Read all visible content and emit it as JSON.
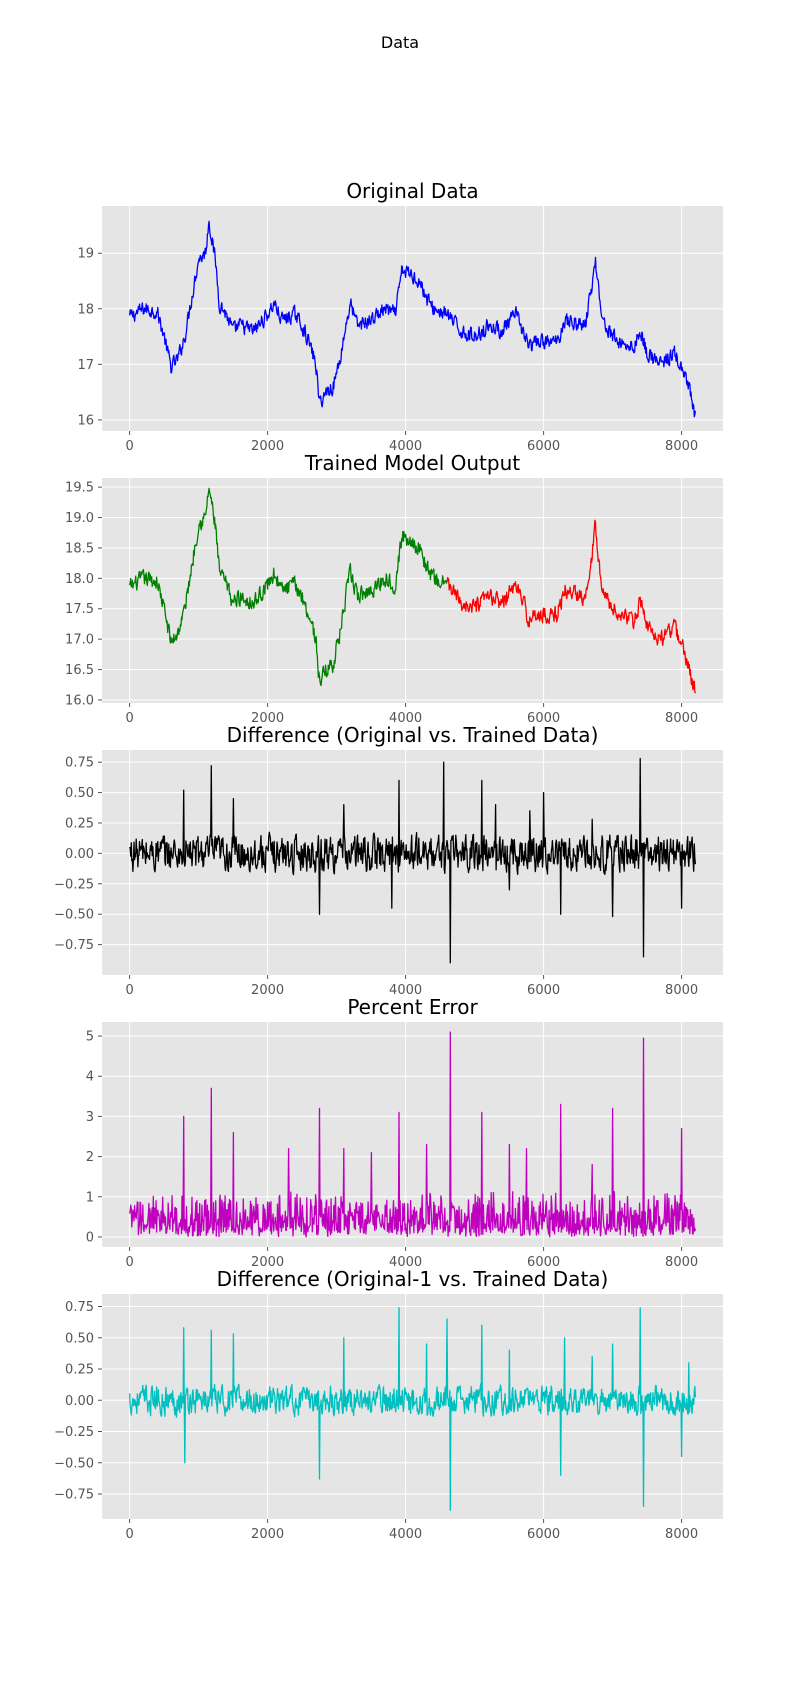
{
  "figure": {
    "title": "Data"
  },
  "chart_data": [
    {
      "type": "line",
      "title": "Original Data",
      "xlim": [
        -400,
        8600
      ],
      "ylim": [
        15.8,
        19.85
      ],
      "xticks": [
        0,
        2000,
        4000,
        6000,
        8000
      ],
      "yticks": [
        16,
        17,
        18,
        19
      ],
      "grid": true,
      "series": [
        {
          "color": "#0000ff",
          "noise": 0.12,
          "points": [
            [
              0,
              17.85
            ],
            [
              200,
              18.0
            ],
            [
              400,
              17.95
            ],
            [
              500,
              17.5
            ],
            [
              600,
              16.95
            ],
            [
              700,
              17.1
            ],
            [
              800,
              17.5
            ],
            [
              900,
              18.2
            ],
            [
              1000,
              18.9
            ],
            [
              1100,
              19.0
            ],
            [
              1150,
              19.6
            ],
            [
              1250,
              18.8
            ],
            [
              1300,
              18.1
            ],
            [
              1400,
              17.9
            ],
            [
              1500,
              17.6
            ],
            [
              1600,
              17.7
            ],
            [
              1800,
              17.6
            ],
            [
              2000,
              17.9
            ],
            [
              2100,
              18.1
            ],
            [
              2200,
              17.8
            ],
            [
              2400,
              17.9
            ],
            [
              2500,
              17.7
            ],
            [
              2600,
              17.4
            ],
            [
              2700,
              17.0
            ],
            [
              2750,
              16.3
            ],
            [
              2850,
              16.5
            ],
            [
              2950,
              16.6
            ],
            [
              3050,
              17.1
            ],
            [
              3150,
              17.8
            ],
            [
              3200,
              18.1
            ],
            [
              3300,
              17.7
            ],
            [
              3500,
              17.8
            ],
            [
              3700,
              18.0
            ],
            [
              3850,
              17.9
            ],
            [
              3950,
              18.7
            ],
            [
              4100,
              18.6
            ],
            [
              4200,
              18.5
            ],
            [
              4300,
              18.2
            ],
            [
              4400,
              18.0
            ],
            [
              4600,
              17.9
            ],
            [
              4800,
              17.6
            ],
            [
              5000,
              17.5
            ],
            [
              5200,
              17.7
            ],
            [
              5400,
              17.6
            ],
            [
              5600,
              17.9
            ],
            [
              5700,
              17.6
            ],
            [
              5800,
              17.3
            ],
            [
              5900,
              17.4
            ],
            [
              6200,
              17.4
            ],
            [
              6300,
              17.8
            ],
            [
              6600,
              17.7
            ],
            [
              6700,
              18.4
            ],
            [
              6750,
              18.9
            ],
            [
              6850,
              17.8
            ],
            [
              7000,
              17.5
            ],
            [
              7100,
              17.4
            ],
            [
              7300,
              17.3
            ],
            [
              7400,
              17.6
            ],
            [
              7500,
              17.2
            ],
            [
              7700,
              17.0
            ],
            [
              7900,
              17.2
            ],
            [
              8000,
              16.9
            ],
            [
              8100,
              16.6
            ],
            [
              8150,
              16.3
            ],
            [
              8200,
              16.05
            ]
          ]
        }
      ]
    },
    {
      "type": "line",
      "title": "Trained Model Output",
      "xlim": [
        -400,
        8600
      ],
      "ylim": [
        15.95,
        19.65
      ],
      "xticks": [
        0,
        2000,
        4000,
        6000,
        8000
      ],
      "yticks": [
        16.0,
        16.5,
        17.0,
        17.5,
        18.0,
        18.5,
        19.0,
        19.5
      ],
      "grid": true,
      "series": [
        {
          "color": "#008000",
          "noise": 0.12,
          "points": [
            [
              0,
              17.85
            ],
            [
              200,
              18.0
            ],
            [
              400,
              17.95
            ],
            [
              500,
              17.5
            ],
            [
              600,
              16.95
            ],
            [
              700,
              17.1
            ],
            [
              800,
              17.5
            ],
            [
              900,
              18.2
            ],
            [
              1000,
              18.9
            ],
            [
              1100,
              19.0
            ],
            [
              1150,
              19.5
            ],
            [
              1250,
              18.8
            ],
            [
              1300,
              18.1
            ],
            [
              1400,
              17.9
            ],
            [
              1500,
              17.6
            ],
            [
              1600,
              17.7
            ],
            [
              1800,
              17.6
            ],
            [
              2000,
              17.9
            ],
            [
              2100,
              18.1
            ],
            [
              2200,
              17.8
            ],
            [
              2400,
              17.9
            ],
            [
              2500,
              17.7
            ],
            [
              2600,
              17.4
            ],
            [
              2700,
              17.0
            ],
            [
              2750,
              16.3
            ],
            [
              2850,
              16.5
            ],
            [
              2950,
              16.6
            ],
            [
              3050,
              17.1
            ],
            [
              3150,
              17.8
            ],
            [
              3200,
              18.1
            ],
            [
              3300,
              17.7
            ],
            [
              3500,
              17.8
            ],
            [
              3700,
              18.0
            ],
            [
              3850,
              17.9
            ],
            [
              3950,
              18.7
            ],
            [
              4100,
              18.6
            ],
            [
              4200,
              18.5
            ],
            [
              4300,
              18.2
            ],
            [
              4400,
              18.0
            ],
            [
              4600,
              17.9
            ]
          ]
        },
        {
          "color": "#ff0000",
          "noise": 0.12,
          "points": [
            [
              4600,
              17.9
            ],
            [
              4800,
              17.6
            ],
            [
              5000,
              17.5
            ],
            [
              5200,
              17.7
            ],
            [
              5400,
              17.6
            ],
            [
              5600,
              17.9
            ],
            [
              5700,
              17.6
            ],
            [
              5800,
              17.3
            ],
            [
              5900,
              17.4
            ],
            [
              6200,
              17.4
            ],
            [
              6300,
              17.8
            ],
            [
              6600,
              17.7
            ],
            [
              6700,
              18.4
            ],
            [
              6750,
              18.9
            ],
            [
              6850,
              17.8
            ],
            [
              7000,
              17.5
            ],
            [
              7100,
              17.4
            ],
            [
              7300,
              17.3
            ],
            [
              7400,
              17.6
            ],
            [
              7500,
              17.2
            ],
            [
              7700,
              17.0
            ],
            [
              7900,
              17.2
            ],
            [
              8000,
              16.9
            ],
            [
              8100,
              16.6
            ],
            [
              8150,
              16.3
            ],
            [
              8200,
              16.15
            ]
          ]
        }
      ]
    },
    {
      "type": "line",
      "title": "Difference (Original vs. Trained Data)",
      "xlim": [
        -400,
        8600
      ],
      "ylim": [
        -1.0,
        0.85
      ],
      "xticks": [
        0,
        2000,
        4000,
        6000,
        8000
      ],
      "yticks": [
        -0.75,
        -0.5,
        -0.25,
        0.0,
        0.25,
        0.5,
        0.75
      ],
      "grid": true,
      "series": [
        {
          "color": "#000000",
          "noise": 0.13,
          "points": [
            [
              0,
              0.0
            ],
            [
              8200,
              0.0
            ]
          ],
          "spikes": [
            [
              780,
              0.52
            ],
            [
              1180,
              0.72
            ],
            [
              1500,
              0.45
            ],
            [
              2750,
              -0.5
            ],
            [
              3100,
              0.4
            ],
            [
              3800,
              -0.45
            ],
            [
              3900,
              0.6
            ],
            [
              4550,
              0.75
            ],
            [
              4650,
              -0.9
            ],
            [
              5100,
              0.6
            ],
            [
              5300,
              0.4
            ],
            [
              5500,
              -0.3
            ],
            [
              5800,
              0.35
            ],
            [
              6000,
              0.5
            ],
            [
              6250,
              -0.5
            ],
            [
              6700,
              0.28
            ],
            [
              7000,
              -0.52
            ],
            [
              7400,
              0.78
            ],
            [
              7450,
              -0.85
            ],
            [
              8000,
              -0.45
            ]
          ]
        }
      ]
    },
    {
      "type": "line",
      "title": "Percent Error",
      "xlim": [
        -400,
        8600
      ],
      "ylim": [
        -0.25,
        5.35
      ],
      "xticks": [
        0,
        2000,
        4000,
        6000,
        8000
      ],
      "yticks": [
        0,
        1,
        2,
        3,
        4,
        5
      ],
      "grid": true,
      "series": [
        {
          "color": "#bf00bf",
          "noise": 0.0,
          "abs_noise": 0.9,
          "points": [
            [
              0,
              0.0
            ],
            [
              8200,
              0.0
            ]
          ],
          "spikes": [
            [
              780,
              3.0
            ],
            [
              1180,
              3.7
            ],
            [
              1500,
              2.6
            ],
            [
              2300,
              2.2
            ],
            [
              2750,
              3.2
            ],
            [
              3100,
              2.2
            ],
            [
              3500,
              2.1
            ],
            [
              3900,
              3.1
            ],
            [
              4300,
              2.3
            ],
            [
              4650,
              5.1
            ],
            [
              5100,
              3.1
            ],
            [
              5500,
              2.3
            ],
            [
              5750,
              2.2
            ],
            [
              6250,
              3.3
            ],
            [
              6700,
              1.8
            ],
            [
              7000,
              3.2
            ],
            [
              7450,
              4.95
            ],
            [
              8000,
              2.7
            ]
          ]
        }
      ]
    },
    {
      "type": "line",
      "title": "Difference (Original-1 vs. Trained Data)",
      "xlim": [
        -400,
        8600
      ],
      "ylim": [
        -0.95,
        0.85
      ],
      "xticks": [
        0,
        2000,
        4000,
        6000,
        8000
      ],
      "yticks": [
        -0.75,
        -0.5,
        -0.25,
        0.0,
        0.25,
        0.5,
        0.75
      ],
      "grid": true,
      "series": [
        {
          "color": "#00bfbf",
          "noise": 0.1,
          "points": [
            [
              0,
              0.0
            ],
            [
              8200,
              0.0
            ]
          ],
          "spikes": [
            [
              780,
              0.58
            ],
            [
              800,
              -0.5
            ],
            [
              1180,
              0.56
            ],
            [
              1500,
              0.53
            ],
            [
              2750,
              -0.63
            ],
            [
              3100,
              0.5
            ],
            [
              3900,
              0.74
            ],
            [
              4300,
              0.45
            ],
            [
              4650,
              -0.88
            ],
            [
              4600,
              0.65
            ],
            [
              5100,
              0.6
            ],
            [
              5500,
              0.4
            ],
            [
              6250,
              -0.6
            ],
            [
              6300,
              0.5
            ],
            [
              6700,
              0.35
            ],
            [
              7000,
              0.45
            ],
            [
              7400,
              0.74
            ],
            [
              7450,
              -0.85
            ],
            [
              8000,
              -0.45
            ],
            [
              8100,
              0.3
            ]
          ]
        }
      ]
    }
  ]
}
